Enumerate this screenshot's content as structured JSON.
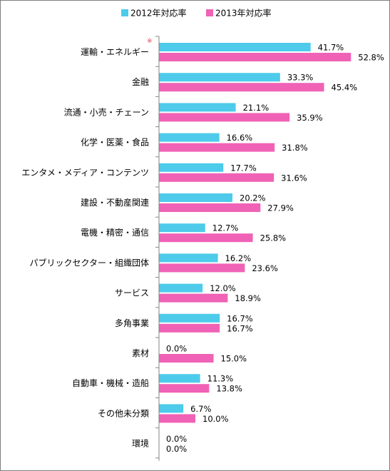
{
  "chart_data": {
    "type": "bar",
    "orientation": "horizontal",
    "categories": [
      "運輸・エネルギー",
      "金融",
      "流通・小売・チェーン",
      "化学・医薬・食品",
      "エンタメ・メディア・コンテンツ",
      "建設・不動産関連",
      "電機・精密・通信",
      "パブリックセクター・組織団体",
      "サービス",
      "多角事業",
      "素材",
      "自動車・機械・造船",
      "その他未分類",
      "環境"
    ],
    "series": [
      {
        "name": "2012年対応率",
        "color": "#4ecbea",
        "values": [
          41.7,
          33.3,
          21.1,
          16.6,
          17.7,
          20.2,
          12.7,
          16.2,
          12.0,
          16.7,
          0.0,
          11.3,
          6.7,
          0.0
        ],
        "labels": [
          "41.7%",
          "33.3%",
          "21.1%",
          "16.6%",
          "17.7%",
          "20.2%",
          "12.7%",
          "16.2%",
          "12.0%",
          "16.7%",
          "0.0%",
          "11.3%",
          "6.7%",
          "0.0%"
        ]
      },
      {
        "name": "2013年対応率",
        "color": "#f062b5",
        "values": [
          52.8,
          45.4,
          35.9,
          31.8,
          31.6,
          27.9,
          25.8,
          23.6,
          18.9,
          16.7,
          15.0,
          13.8,
          10.0,
          0.0
        ],
        "labels": [
          "52.8%",
          "45.4%",
          "35.9%",
          "31.8%",
          "31.6%",
          "27.9%",
          "25.8%",
          "23.6%",
          "18.9%",
          "16.7%",
          "15.0%",
          "13.8%",
          "10.0%",
          "0.0%"
        ]
      }
    ],
    "annotation": {
      "category_index": 0,
      "text": "※",
      "color": "#e8424e"
    },
    "xlim": [
      0,
      60
    ],
    "grid": false,
    "legend": "top-center",
    "axis_color": "#868686"
  }
}
